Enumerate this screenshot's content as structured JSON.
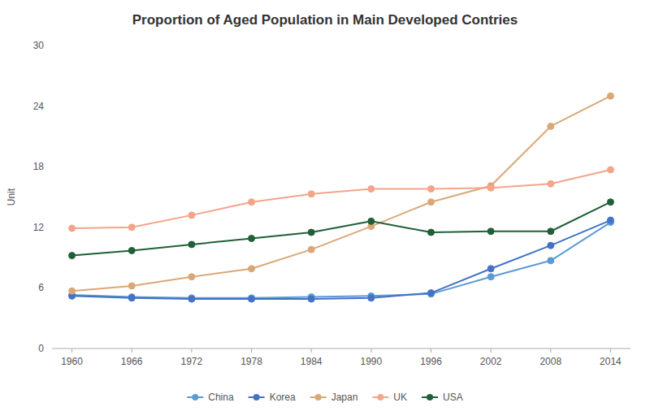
{
  "chart_data": {
    "type": "line",
    "title": "Proportion of Aged Population in Main Developed Contries",
    "ylabel": "Unit",
    "x": [
      1960,
      1966,
      1972,
      1978,
      1984,
      1990,
      1996,
      2002,
      2008,
      2014
    ],
    "series": [
      {
        "name": "China",
        "color": "#5b9bd5",
        "values": [
          5.3,
          5.1,
          5.0,
          5.0,
          5.1,
          5.2,
          5.4,
          7.1,
          8.7,
          12.5
        ]
      },
      {
        "name": "Korea",
        "color": "#4472c4",
        "values": [
          5.2,
          5.0,
          4.9,
          4.9,
          4.9,
          5.0,
          5.5,
          7.9,
          10.2,
          12.7
        ]
      },
      {
        "name": "Japan",
        "color": "#daa876",
        "values": [
          5.7,
          6.2,
          7.1,
          7.9,
          9.8,
          12.1,
          14.5,
          16.1,
          22.0,
          25.0
        ]
      },
      {
        "name": "UK",
        "color": "#f4a48a",
        "values": [
          11.9,
          12.0,
          13.2,
          14.5,
          15.3,
          15.8,
          15.8,
          15.9,
          16.3,
          17.7
        ]
      },
      {
        "name": "USA",
        "color": "#1f6038",
        "values": [
          9.2,
          9.7,
          10.3,
          10.9,
          11.5,
          12.6,
          11.5,
          11.6,
          11.6,
          14.5
        ]
      }
    ],
    "xlim": [
      1958,
      2016
    ],
    "ylim": [
      0,
      30
    ],
    "xticks": [
      1960,
      1966,
      1972,
      1978,
      1984,
      1990,
      1996,
      2002,
      2008,
      2014
    ],
    "yticks": [
      0,
      6,
      12,
      18,
      24,
      30
    ],
    "marker": "circle",
    "grid": false,
    "legend": "bottom"
  }
}
